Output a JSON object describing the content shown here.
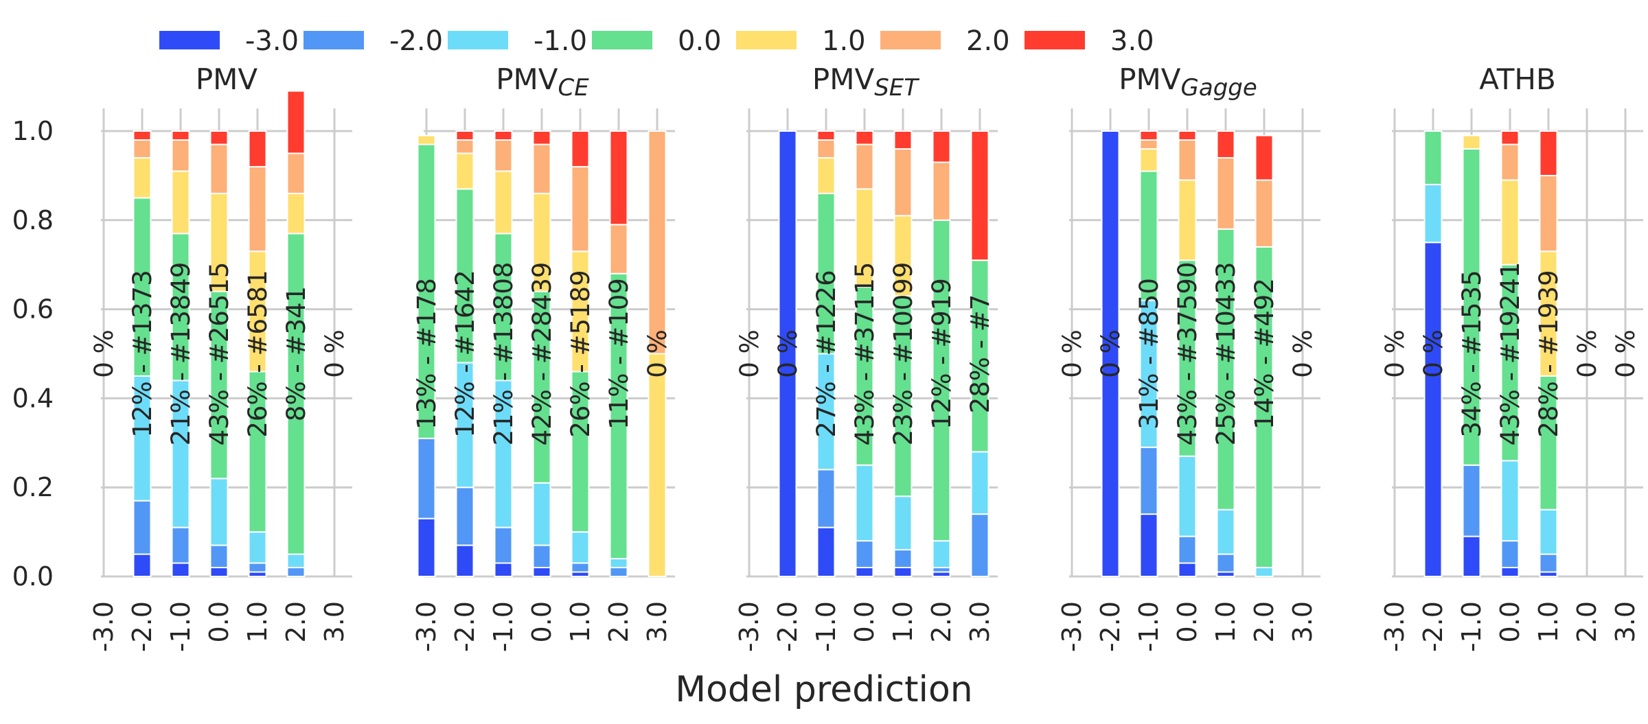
{
  "chart_data": {
    "type": "bar",
    "stacked": true,
    "xlabel": "Model prediction",
    "ylabel": "",
    "ylim": [
      0,
      1.05
    ],
    "y_ticks": [
      "0.0",
      "0.2",
      "0.4",
      "0.6",
      "0.8",
      "1.0"
    ],
    "grid": true,
    "legend_position": "top",
    "categories": [
      "-3.0",
      "-2.0",
      "-1.0",
      "0.0",
      "1.0",
      "2.0",
      "3.0"
    ],
    "legend": [
      {
        "label": "-3.0",
        "color": "#2e4bf7"
      },
      {
        "label": "-2.0",
        "color": "#5297f5"
      },
      {
        "label": "-1.0",
        "color": "#6ddcf9"
      },
      {
        "label": "0.0",
        "color": "#64e08f"
      },
      {
        "label": "1.0",
        "color": "#ffdf6e"
      },
      {
        "label": "2.0",
        "color": "#fdb077"
      },
      {
        "label": "3.0",
        "color": "#ff3c2e"
      }
    ],
    "panels": [
      {
        "title": "PMV",
        "title_sub": "",
        "bars": [
          {
            "category": "-3.0",
            "label": "0 %",
            "fractions": null
          },
          {
            "category": "-2.0",
            "label": "12% - #1373",
            "fractions": [
              0.05,
              0.12,
              0.28,
              0.4,
              0.09,
              0.04,
              0.02
            ]
          },
          {
            "category": "-1.0",
            "label": "21% - #13849",
            "fractions": [
              0.03,
              0.08,
              0.33,
              0.33,
              0.14,
              0.07,
              0.02
            ]
          },
          {
            "category": "0.0",
            "label": "43% - #26515",
            "fractions": [
              0.02,
              0.05,
              0.15,
              0.42,
              0.22,
              0.11,
              0.03
            ]
          },
          {
            "category": "1.0",
            "label": "26% - #6581",
            "fractions": [
              0.01,
              0.02,
              0.07,
              0.36,
              0.27,
              0.19,
              0.08
            ]
          },
          {
            "category": "2.0",
            "label": "8% - #341",
            "fractions": [
              0.0,
              0.02,
              0.03,
              0.72,
              0.09,
              0.09,
              0.14
            ]
          },
          {
            "category": "3.0",
            "label": "0 %",
            "fractions": null
          }
        ]
      },
      {
        "title": "PMV",
        "title_sub": "CE",
        "bars": [
          {
            "category": "-3.0",
            "label": "13% - #178",
            "fractions": [
              0.13,
              0.18,
              0.0,
              0.66,
              0.02,
              0.0,
              0.0
            ]
          },
          {
            "category": "-2.0",
            "label": "12% - #1642",
            "fractions": [
              0.07,
              0.13,
              0.28,
              0.39,
              0.08,
              0.03,
              0.02
            ]
          },
          {
            "category": "-1.0",
            "label": "21% - #13808",
            "fractions": [
              0.03,
              0.08,
              0.33,
              0.33,
              0.14,
              0.07,
              0.02
            ]
          },
          {
            "category": "0.0",
            "label": "42% - #28439",
            "fractions": [
              0.02,
              0.05,
              0.14,
              0.43,
              0.22,
              0.11,
              0.03
            ]
          },
          {
            "category": "1.0",
            "label": "26% - #5189",
            "fractions": [
              0.01,
              0.02,
              0.07,
              0.36,
              0.27,
              0.19,
              0.08
            ]
          },
          {
            "category": "2.0",
            "label": "11% - #109",
            "fractions": [
              0.0,
              0.02,
              0.02,
              0.64,
              0.0,
              0.11,
              0.21
            ]
          },
          {
            "category": "3.0",
            "label": "0 %",
            "fractions": [
              0.0,
              0.0,
              0.0,
              0.0,
              0.5,
              0.5,
              0.0
            ]
          }
        ]
      },
      {
        "title": "PMV",
        "title_sub": "SET",
        "bars": [
          {
            "category": "-3.0",
            "label": "0 %",
            "fractions": null
          },
          {
            "category": "-2.0",
            "label": "0 %",
            "fractions": [
              1.0,
              0.0,
              0.0,
              0.0,
              0.0,
              0.0,
              0.0
            ]
          },
          {
            "category": "-1.0",
            "label": "27% - #1226",
            "fractions": [
              0.11,
              0.13,
              0.26,
              0.36,
              0.08,
              0.04,
              0.02
            ]
          },
          {
            "category": "0.0",
            "label": "43% - #37115",
            "fractions": [
              0.02,
              0.06,
              0.17,
              0.4,
              0.22,
              0.1,
              0.03
            ]
          },
          {
            "category": "1.0",
            "label": "23% - #10099",
            "fractions": [
              0.02,
              0.04,
              0.12,
              0.45,
              0.18,
              0.15,
              0.04
            ]
          },
          {
            "category": "2.0",
            "label": "12% - #919",
            "fractions": [
              0.01,
              0.01,
              0.06,
              0.72,
              0.0,
              0.13,
              0.07
            ]
          },
          {
            "category": "3.0",
            "label": "28% - #7",
            "fractions": [
              0.0,
              0.14,
              0.14,
              0.43,
              0.0,
              0.0,
              0.29
            ]
          }
        ]
      },
      {
        "title": "PMV",
        "title_sub": "Gagge",
        "bars": [
          {
            "category": "-3.0",
            "label": "0 %",
            "fractions": null
          },
          {
            "category": "-2.0",
            "label": "0 %",
            "fractions": [
              1.0,
              0.0,
              0.0,
              0.0,
              0.0,
              0.0,
              0.0
            ]
          },
          {
            "category": "-1.0",
            "label": "31% - #850",
            "fractions": [
              0.14,
              0.15,
              0.33,
              0.29,
              0.05,
              0.02,
              0.02
            ]
          },
          {
            "category": "0.0",
            "label": "43% - #37590",
            "fractions": [
              0.03,
              0.06,
              0.18,
              0.44,
              0.18,
              0.09,
              0.02
            ]
          },
          {
            "category": "1.0",
            "label": "25% - #10433",
            "fractions": [
              0.01,
              0.04,
              0.1,
              0.63,
              0.0,
              0.16,
              0.06
            ]
          },
          {
            "category": "2.0",
            "label": "14% - #492",
            "fractions": [
              0.0,
              0.0,
              0.02,
              0.72,
              0.0,
              0.15,
              0.1
            ]
          },
          {
            "category": "3.0",
            "label": "0 %",
            "fractions": null
          }
        ]
      },
      {
        "title": "ATHB",
        "title_sub": "",
        "bars": [
          {
            "category": "-3.0",
            "label": "0 %",
            "fractions": null
          },
          {
            "category": "-2.0",
            "label": "0 %",
            "fractions": [
              0.75,
              0.0,
              0.13,
              0.12,
              0.0,
              0.0,
              0.0
            ]
          },
          {
            "category": "-1.0",
            "label": "34% - #1535",
            "fractions": [
              0.09,
              0.16,
              0.0,
              0.71,
              0.03,
              0.0,
              0.0
            ]
          },
          {
            "category": "0.0",
            "label": "43% - #19241",
            "fractions": [
              0.02,
              0.06,
              0.18,
              0.44,
              0.19,
              0.08,
              0.03
            ]
          },
          {
            "category": "1.0",
            "label": "28% - #1939",
            "fractions": [
              0.01,
              0.04,
              0.1,
              0.3,
              0.28,
              0.17,
              0.1
            ]
          },
          {
            "category": "2.0",
            "label": "0 %",
            "fractions": null
          },
          {
            "category": "3.0",
            "label": "0 %",
            "fractions": null
          }
        ]
      }
    ]
  }
}
